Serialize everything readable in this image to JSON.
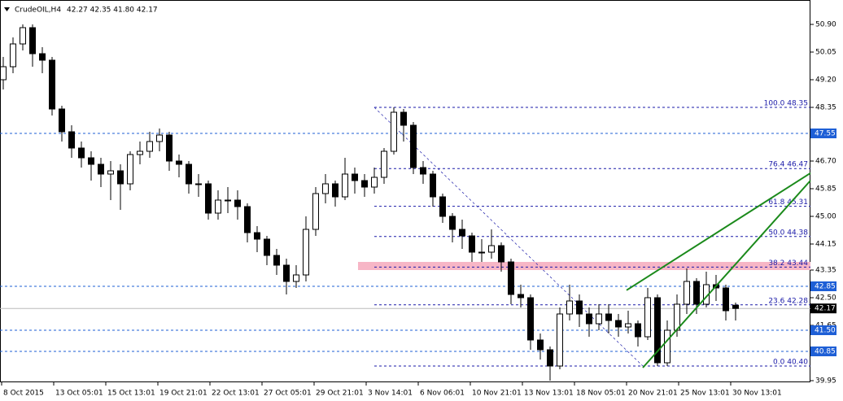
{
  "chart_data": {
    "type": "candlestick",
    "header": {
      "symbol": "CrudeOIL,H4",
      "quote": "42.27 42.35 41.80 42.17"
    },
    "ylim": [
      39.9,
      51.65
    ],
    "yticks": [
      {
        "value": 50.9,
        "label": "50.90"
      },
      50.05,
      {
        "value": 49.2,
        "label": "49.20"
      },
      48.35,
      {
        "value": 46.7,
        "label": "46.70"
      },
      45.85,
      {
        "value": 45,
        "label": "45.00"
      },
      44.15,
      43.35,
      {
        "value": 42.5,
        "label": "42.50"
      },
      41.65,
      39.95
    ],
    "xticks": [
      "8 Oct 2015",
      "13 Oct 05:01",
      "15 Oct 13:01",
      "19 Oct 21:01",
      "22 Oct 13:01",
      "27 Oct 05:01",
      "29 Oct 21:01",
      "3 Nov 14:01",
      "6 Nov 06:01",
      "10 Nov 21:01",
      "13 Nov 13:01",
      "18 Nov 05:01",
      "20 Nov 21:01",
      "25 Nov 13:01",
      "30 Nov 13:01"
    ],
    "open": [
      49.2,
      49.6,
      50.3,
      50.8,
      50.0,
      49.8,
      48.3,
      47.6,
      47.1,
      46.8,
      46.6,
      46.3,
      46.4,
      46.0,
      46.9,
      47.0,
      47.3,
      47.5,
      46.7,
      46.6,
      46.0,
      46.0,
      45.1,
      45.5,
      45.5,
      45.3,
      44.5,
      44.3,
      43.8,
      43.5,
      43.0,
      43.2,
      44.6,
      45.7,
      46.0,
      45.6,
      46.3,
      46.1,
      45.9,
      46.2,
      47.0,
      48.2,
      47.8,
      46.5,
      46.3,
      45.6,
      45.0,
      44.6,
      44.4,
      43.9,
      43.9,
      44.1,
      43.6,
      42.6,
      42.5,
      41.2,
      40.9,
      40.4,
      42.0,
      42.4,
      42.0,
      41.7,
      42.0,
      41.8,
      41.6,
      41.7,
      41.3,
      42.5,
      40.5,
      41.5,
      42.3,
      43.0,
      42.3,
      42.9,
      42.8,
      42.27
    ],
    "high": [
      49.9,
      50.5,
      50.9,
      50.9,
      50.2,
      49.9,
      48.4,
      47.8,
      47.3,
      47.0,
      46.8,
      46.7,
      46.6,
      47.0,
      47.3,
      47.6,
      47.7,
      47.6,
      46.9,
      46.7,
      46.3,
      46.1,
      45.8,
      45.9,
      45.8,
      45.4,
      44.7,
      44.4,
      44.0,
      43.7,
      43.5,
      45.0,
      45.9,
      46.3,
      46.1,
      46.8,
      46.5,
      46.3,
      46.5,
      47.1,
      48.35,
      48.3,
      47.9,
      46.7,
      46.4,
      45.7,
      45.1,
      44.9,
      44.5,
      44.3,
      44.6,
      44.2,
      43.7,
      42.9,
      42.6,
      41.4,
      41.0,
      42.2,
      42.9,
      42.6,
      42.2,
      42.3,
      42.3,
      42.0,
      42.1,
      41.8,
      42.8,
      42.6,
      41.8,
      42.6,
      43.4,
      43.1,
      43.3,
      43.2,
      42.9,
      42.35
    ],
    "low": [
      48.9,
      49.4,
      50.1,
      49.6,
      49.4,
      48.1,
      47.3,
      46.8,
      46.5,
      46.1,
      45.9,
      45.5,
      45.2,
      45.8,
      46.6,
      46.8,
      47.0,
      46.4,
      46.2,
      45.7,
      45.6,
      44.9,
      44.9,
      45.1,
      44.9,
      44.2,
      43.9,
      43.5,
      43.2,
      42.6,
      42.8,
      43.0,
      44.4,
      45.4,
      45.3,
      45.5,
      45.7,
      45.6,
      45.7,
      46.0,
      46.9,
      47.3,
      46.3,
      46.0,
      45.3,
      44.8,
      44.2,
      44.0,
      43.6,
      43.6,
      43.7,
      43.3,
      42.3,
      42.2,
      40.9,
      40.6,
      39.95,
      40.3,
      41.8,
      41.6,
      41.3,
      41.5,
      41.4,
      41.3,
      41.4,
      41.0,
      41.2,
      40.4,
      40.4,
      41.3,
      42.0,
      42.0,
      42.2,
      42.4,
      41.8,
      41.8
    ],
    "close": [
      49.6,
      50.3,
      50.8,
      50.0,
      49.8,
      48.3,
      47.6,
      47.1,
      46.8,
      46.6,
      46.3,
      46.4,
      46.0,
      46.9,
      47.0,
      47.3,
      47.5,
      46.7,
      46.6,
      46.0,
      46.0,
      45.1,
      45.5,
      45.5,
      45.3,
      44.5,
      44.3,
      43.8,
      43.5,
      43.0,
      43.2,
      44.6,
      45.7,
      46.0,
      45.6,
      46.3,
      46.1,
      45.9,
      46.2,
      47.0,
      48.2,
      47.8,
      46.5,
      46.3,
      45.6,
      45.0,
      44.6,
      44.4,
      43.9,
      43.9,
      44.1,
      43.6,
      42.6,
      42.5,
      41.2,
      40.9,
      40.4,
      42.0,
      42.4,
      42.0,
      41.7,
      42.0,
      41.8,
      41.6,
      41.7,
      41.3,
      42.5,
      40.5,
      41.5,
      42.3,
      43.0,
      42.3,
      42.9,
      42.8,
      42.1,
      42.17
    ],
    "levels": [
      {
        "value": 47.55,
        "label": "47.55"
      },
      {
        "value": 42.85,
        "label": "42.85"
      },
      {
        "value": 41.5,
        "label": "41.50"
      },
      {
        "value": 40.85,
        "label": "40.85"
      }
    ],
    "level_color": "#1e5fd6",
    "current": {
      "value": 42.17,
      "label": "42.17"
    },
    "fibonacci": [
      {
        "value": 48.35,
        "label": "100.0 48.35"
      },
      {
        "value": 46.47,
        "label": "76.4 46.47"
      },
      {
        "value": 45.31,
        "label": "61.8 45.31"
      },
      {
        "value": 44.38,
        "label": "50.0 44.38"
      },
      {
        "value": 43.44,
        "label": "38.2 43.44"
      },
      {
        "value": 42.28,
        "label": "23.6 42.28"
      },
      {
        "value": 40.4,
        "label": "0.0 40.40"
      }
    ],
    "fib_color": "#1a1aa8",
    "zone": [
      43.35,
      43.6
    ],
    "zone_color": "#f7b6c6",
    "trendlines": [
      {
        "start": 42.73,
        "end": 46.33
      },
      {
        "start": 40.35,
        "end": 46.1
      }
    ],
    "trend_color": "#1b8a1b"
  }
}
